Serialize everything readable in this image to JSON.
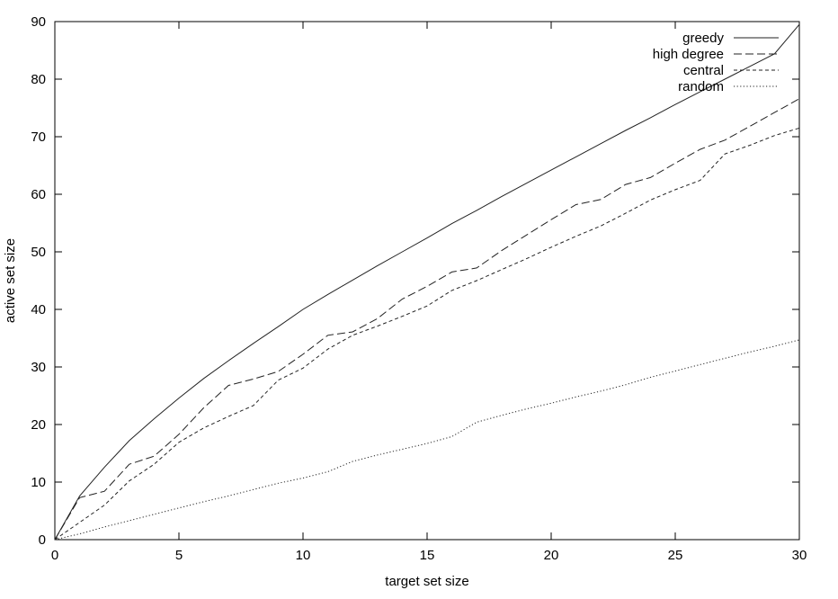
{
  "chart_data": {
    "type": "line",
    "xlabel": "target set size",
    "ylabel": "active set size",
    "xlim": [
      0,
      30
    ],
    "ylim": [
      0,
      90
    ],
    "xticks": [
      0,
      5,
      10,
      15,
      20,
      25,
      30
    ],
    "yticks": [
      0,
      10,
      20,
      30,
      40,
      50,
      60,
      70,
      80,
      90
    ],
    "grid": false,
    "legend_position": "top-right",
    "x": [
      0,
      1,
      2,
      3,
      4,
      5,
      6,
      7,
      8,
      9,
      10,
      11,
      12,
      13,
      14,
      15,
      16,
      17,
      18,
      19,
      20,
      21,
      22,
      23,
      24,
      25,
      26,
      27,
      28,
      29,
      30
    ],
    "series": [
      {
        "name": "greedy",
        "dash": "solid",
        "values": [
          0,
          7.6,
          12.6,
          17.2,
          21.0,
          24.6,
          28.0,
          31.1,
          34.1,
          37.0,
          40.0,
          42.6,
          45.1,
          47.6,
          50.0,
          52.4,
          54.9,
          57.2,
          59.6,
          61.9,
          64.2,
          66.5,
          68.8,
          71.1,
          73.3,
          75.6,
          77.8,
          80.0,
          82.2,
          84.4,
          89.5
        ]
      },
      {
        "name": "high degree",
        "dash": "long-dash",
        "values": [
          0,
          7.3,
          8.4,
          13.1,
          14.5,
          18.3,
          22.9,
          26.8,
          27.9,
          29.2,
          32.2,
          35.5,
          36.1,
          38.4,
          41.8,
          44.0,
          46.5,
          47.2,
          50.2,
          52.9,
          55.6,
          58.2,
          59.1,
          61.7,
          62.9,
          65.4,
          67.8,
          69.4,
          71.8,
          74.2,
          76.6
        ]
      },
      {
        "name": "central",
        "dash": "short-dash",
        "values": [
          0,
          3.0,
          6.0,
          10.2,
          13.1,
          16.9,
          19.4,
          21.4,
          23.3,
          27.7,
          29.8,
          33.1,
          35.5,
          37.1,
          38.8,
          40.6,
          43.3,
          45.0,
          46.9,
          48.8,
          50.8,
          52.7,
          54.5,
          56.7,
          59.0,
          60.8,
          62.4,
          67.0,
          68.5,
          70.2,
          71.5
        ]
      },
      {
        "name": "random",
        "dash": "dotted",
        "values": [
          0,
          1.0,
          2.2,
          3.3,
          4.4,
          5.5,
          6.6,
          7.6,
          8.7,
          9.8,
          10.7,
          11.8,
          13.6,
          14.7,
          15.7,
          16.7,
          17.9,
          20.4,
          21.6,
          22.7,
          23.7,
          24.8,
          25.8,
          26.9,
          28.2,
          29.3,
          30.4,
          31.5,
          32.6,
          33.6,
          34.7
        ]
      }
    ]
  }
}
